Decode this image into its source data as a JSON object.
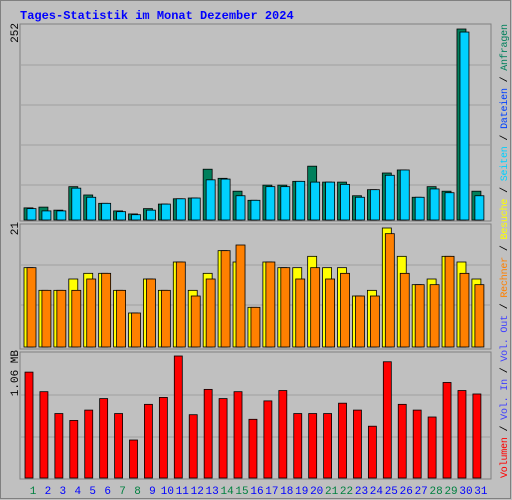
{
  "chart_data": [
    {
      "type": "bar",
      "title": "Tages-Statistik im Monat Dezember 2024",
      "categories": [
        "1",
        "2",
        "3",
        "4",
        "5",
        "6",
        "7",
        "8",
        "9",
        "10",
        "11",
        "12",
        "13",
        "14",
        "15",
        "16",
        "17",
        "18",
        "19",
        "20",
        "21",
        "22",
        "23",
        "24",
        "25",
        "26",
        "27",
        "28",
        "29",
        "30",
        "31"
      ],
      "category_colors": [
        "#008040",
        "#0000ff",
        "#0000ff",
        "#0000ff",
        "#0000ff",
        "#0000ff",
        "#008040",
        "#008040",
        "#0000ff",
        "#0000ff",
        "#0000ff",
        "#0000ff",
        "#0000ff",
        "#008040",
        "#008040",
        "#0000ff",
        "#0000ff",
        "#0000ff",
        "#0000ff",
        "#0000ff",
        "#008040",
        "#008040",
        "#0000ff",
        "#0000ff",
        "#0000ff",
        "#0000ff",
        "#0000ff",
        "#008040",
        "#008040",
        "#0000ff",
        "#0000ff"
      ],
      "ylim": [
        0,
        252
      ],
      "yticks": [
        252
      ],
      "series": [
        {
          "color": "#00805c",
          "values": [
            16,
            17,
            13,
            44,
            33,
            22,
            12,
            8,
            15,
            21,
            28,
            29,
            67,
            55,
            38,
            26,
            46,
            46,
            51,
            71,
            50,
            50,
            32,
            40,
            62,
            66,
            30,
            44,
            38,
            252,
            38
          ]
        },
        {
          "color": "#00d0ff",
          "values": [
            15,
            12,
            12,
            42,
            30,
            22,
            11,
            7,
            13,
            21,
            28,
            29,
            53,
            54,
            32,
            26,
            44,
            44,
            51,
            50,
            50,
            47,
            30,
            40,
            59,
            66,
            30,
            41,
            36,
            248,
            32
          ]
        }
      ]
    },
    {
      "type": "bar",
      "ylim": [
        0,
        21
      ],
      "yticks": [
        21
      ],
      "series": [
        {
          "color": "#ffff00",
          "values": [
            14,
            10,
            10,
            12,
            13,
            13,
            10,
            6,
            12,
            10,
            15,
            10,
            13,
            17,
            15,
            7,
            15,
            14,
            14,
            16,
            14,
            14,
            9,
            10,
            21,
            16,
            11,
            12,
            16,
            15,
            12
          ]
        },
        {
          "color": "#ff8000",
          "values": [
            14,
            10,
            10,
            10,
            12,
            13,
            10,
            6,
            12,
            10,
            15,
            9,
            12,
            17,
            18,
            7,
            15,
            14,
            12,
            14,
            12,
            13,
            9,
            9,
            20,
            13,
            11,
            11,
            16,
            13,
            11
          ]
        }
      ]
    },
    {
      "type": "bar",
      "ylim": [
        0,
        1.06
      ],
      "yticks": [
        {
          "value": 1.06,
          "label": "1.06 MB"
        }
      ],
      "series": [
        {
          "color": "#ff0000",
          "values": [
            0.92,
            0.75,
            0.56,
            0.5,
            0.59,
            0.69,
            0.56,
            0.33,
            0.64,
            0.7,
            1.06,
            0.55,
            0.77,
            0.69,
            0.75,
            0.51,
            0.67,
            0.76,
            0.56,
            0.56,
            0.56,
            0.65,
            0.59,
            0.45,
            1.01,
            0.64,
            0.59,
            0.53,
            0.83,
            0.76,
            0.73
          ]
        }
      ]
    }
  ],
  "legend": [
    {
      "text": "Volumen",
      "color": "#ff0000"
    },
    {
      "text": "Vol. In",
      "color": "#4040ff"
    },
    {
      "text": "Vol. Out",
      "color": "#4040ff"
    },
    {
      "text": "Rechner",
      "color": "#ff8000"
    },
    {
      "text": "Besuche",
      "color": "#ffff00"
    },
    {
      "text": "Seiten",
      "color": "#00d0ff"
    },
    {
      "text": "Dateien",
      "color": "#0040ff"
    },
    {
      "text": "Anfragen",
      "color": "#00805c"
    }
  ]
}
